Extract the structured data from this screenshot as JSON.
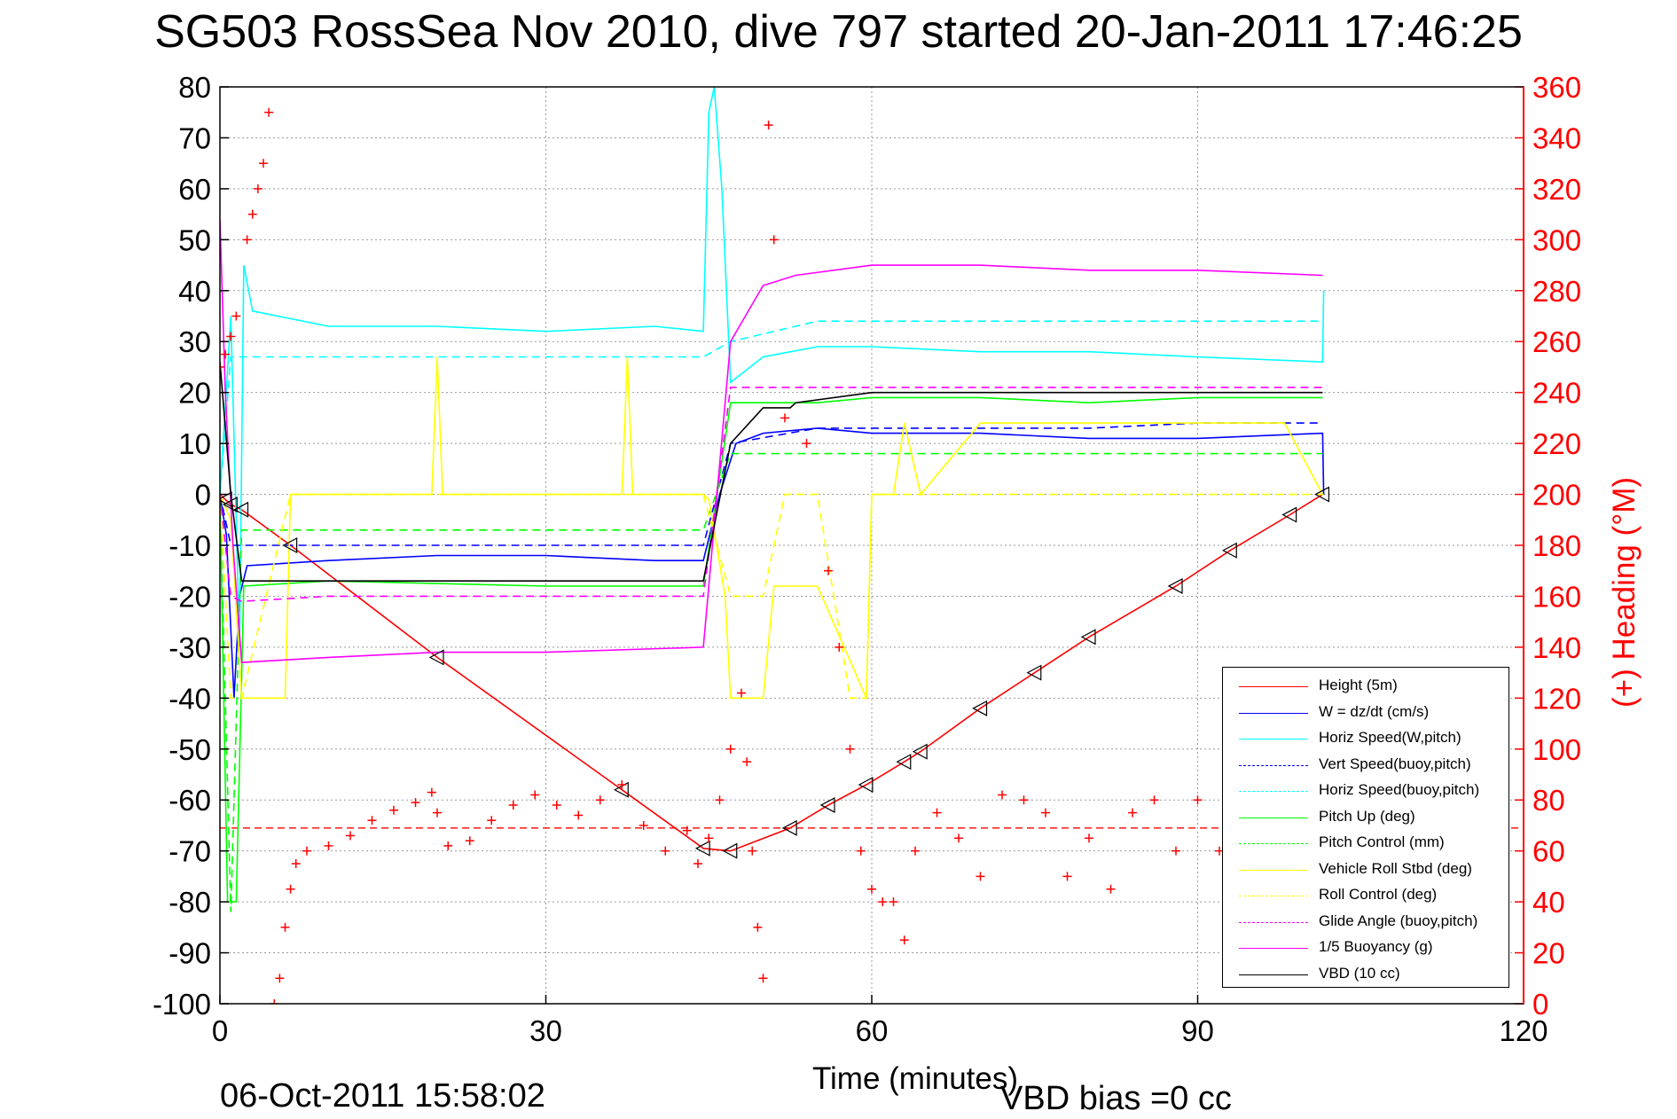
{
  "title": "SG503 RossSea Nov 2010, dive 797 started 20-Jan-2011 17:46:25",
  "footer": {
    "date": "06-Oct-2011 15:58:02",
    "vbd_bias": "VBD bias =0 cc"
  },
  "chart_data": {
    "type": "line",
    "title": "SG503 RossSea Nov 2010, dive 797 started 20-Jan-2011 17:46:25",
    "xlabel": "Time (minutes)",
    "ylabel_left": "",
    "ylabel_right": "(+) Heading (°M)",
    "xlim": [
      0,
      120
    ],
    "ylim_left": [
      -100,
      80
    ],
    "ylim_right": [
      0,
      360
    ],
    "x_ticks": [
      "0",
      "30",
      "60",
      "90",
      "120"
    ],
    "y_ticks_left": [
      "80",
      "70",
      "60",
      "50",
      "40",
      "30",
      "20",
      "10",
      "0",
      "-10",
      "-20",
      "-30",
      "-40",
      "-50",
      "-60",
      "-70",
      "-80",
      "-90",
      "-100"
    ],
    "y_ticks_right": [
      "360",
      "340",
      "320",
      "300",
      "280",
      "260",
      "240",
      "220",
      "200",
      "180",
      "160",
      "140",
      "120",
      "100",
      "80",
      "60",
      "40",
      "20",
      "0"
    ],
    "grid": true,
    "legend_position": "lower-right",
    "colors": {
      "height": "#ff0000",
      "w": "#0000ff",
      "horiz_speed": "#00ffff",
      "pitch": "#00ff00",
      "roll": "#ffff00",
      "glide": "#ff00ff",
      "vbd": "#000000"
    },
    "series": [
      {
        "name": "Height (5m)",
        "color": "#ff0000",
        "dash": false,
        "x": [
          0,
          0.5,
          1,
          2,
          6.5,
          20,
          37,
          44.5,
          47,
          52.5,
          56,
          59.5,
          63,
          64.5,
          70,
          75,
          80,
          88,
          93,
          98.5,
          101.5
        ],
        "y": [
          0,
          -1,
          -2,
          -3,
          -10,
          -32,
          -58,
          -69.5,
          -70,
          -65.5,
          -61,
          -57,
          -52.5,
          -50.5,
          -42,
          -35,
          -28,
          -18,
          -11,
          -4,
          0
        ]
      },
      {
        "name": "W = dz/dt (cm/s)",
        "color": "#0000ff",
        "dash": false,
        "x": [
          0,
          0.6,
          1.3,
          1.8,
          2.5,
          10,
          20,
          30,
          40,
          44.5,
          46,
          47.5,
          50,
          55,
          60,
          70,
          80,
          90,
          101.5,
          101.6
        ],
        "y": [
          0,
          -8,
          -40,
          -20,
          -14,
          -13,
          -12,
          -12,
          -13,
          -13,
          0,
          10,
          12,
          13,
          12,
          12,
          11,
          11,
          12,
          0
        ]
      },
      {
        "name": "Horiz Speed(W,pitch)",
        "color": "#00ffff",
        "dash": false,
        "x": [
          0,
          1,
          1.8,
          2.2,
          3,
          10,
          20,
          30,
          40,
          44.5,
          45,
          45.5,
          46.2,
          47,
          50,
          55,
          60,
          70,
          80,
          90,
          101.5,
          101.6
        ],
        "y": [
          0,
          35,
          -30,
          45,
          36,
          33,
          33,
          32,
          33,
          32,
          75,
          80,
          60,
          22,
          27,
          29,
          29,
          28,
          28,
          27,
          26,
          40
        ]
      },
      {
        "name": "Vert Speed(buoy,pitch)",
        "color": "#0000ff",
        "dash": true,
        "x": [
          0,
          1,
          2,
          10,
          30,
          44.5,
          47,
          55,
          60,
          70,
          80,
          90,
          101.5
        ],
        "y": [
          0,
          -10,
          -10,
          -10,
          -10,
          -10,
          10,
          13,
          13,
          13,
          13,
          14,
          14
        ]
      },
      {
        "name": "Horiz Speed(buoy,pitch)",
        "color": "#00ffff",
        "dash": true,
        "x": [
          0,
          1,
          2,
          10,
          30,
          44.5,
          47,
          55,
          60,
          70,
          80,
          90,
          101.5
        ],
        "y": [
          0,
          27,
          27,
          27,
          27,
          27,
          30,
          34,
          34,
          34,
          34,
          34,
          34
        ]
      },
      {
        "name": "Pitch Up (deg)",
        "color": "#00ff00",
        "dash": false,
        "x": [
          0,
          0.7,
          1.5,
          2.2,
          10,
          30,
          44.5,
          47,
          55,
          60,
          70,
          80,
          90,
          101.5
        ],
        "y": [
          0,
          -80,
          -80,
          -18,
          -17,
          -18,
          -18,
          18,
          18,
          19,
          19,
          18,
          19,
          19
        ]
      },
      {
        "name": "Pitch Control (mm)",
        "color": "#00ff00",
        "dash": true,
        "x": [
          0,
          1,
          2,
          10,
          30,
          44.5,
          47,
          55,
          60,
          70,
          80,
          90,
          101.5
        ],
        "y": [
          0,
          -82,
          -7,
          -7,
          -7,
          -7,
          8,
          8,
          8,
          8,
          8,
          8,
          8
        ]
      },
      {
        "name": "Vehicle Roll Stbd (deg)",
        "color": "#ffff00",
        "dash": false,
        "x": [
          0,
          1,
          2,
          6,
          6.5,
          19.5,
          20,
          20.5,
          37,
          37.5,
          38,
          44.5,
          45,
          46.5,
          47,
          50,
          51,
          55,
          59.5,
          60,
          62,
          63,
          64.5,
          70,
          75,
          80,
          88,
          93,
          98,
          101.5
        ],
        "y": [
          0,
          -5,
          -40,
          -40,
          0,
          0,
          27,
          0,
          0,
          27,
          0,
          0,
          -1,
          -20,
          -40,
          -40,
          -18,
          -18,
          -40,
          0,
          0,
          14,
          0,
          14,
          14,
          14,
          14,
          14,
          14,
          0
        ]
      },
      {
        "name": "Roll Control (deg)",
        "color": "#ffff00",
        "dash": true,
        "x": [
          0,
          1,
          2,
          6.5,
          44.5,
          47,
          50,
          52,
          55,
          58,
          59.5,
          60,
          101.5
        ],
        "y": [
          0,
          -40,
          -40,
          0,
          0,
          -20,
          -20,
          0,
          0,
          -40,
          -40,
          0,
          0
        ]
      },
      {
        "name": "Glide Angle (buoy,pitch)",
        "color": "#ff00ff",
        "dash": true,
        "x": [
          0,
          1,
          2,
          10,
          30,
          44.5,
          47,
          55,
          60,
          70,
          80,
          90,
          101.5
        ],
        "y": [
          0,
          -20,
          -21,
          -20,
          -20,
          -20,
          21,
          21,
          21,
          21,
          21,
          21,
          21
        ]
      },
      {
        "name": "1/5 Buoyancy (g)",
        "color": "#ff00ff",
        "dash": false,
        "x": [
          0,
          0.5,
          1.2,
          2,
          10,
          20,
          30,
          44.5,
          47,
          50,
          53,
          60,
          70,
          80,
          90,
          101.5
        ],
        "y": [
          54,
          20,
          -10,
          -33,
          -32,
          -31,
          -31,
          -30,
          30,
          41,
          43,
          45,
          45,
          44,
          44,
          43
        ]
      },
      {
        "name": "VBD (10 cc)",
        "color": "#000000",
        "dash": false,
        "x": [
          0,
          1,
          2,
          10,
          30,
          44.5,
          47,
          50,
          52.5,
          53,
          60,
          101.5
        ],
        "y": [
          26,
          0,
          -17,
          -17,
          -17,
          -17,
          10,
          17,
          17,
          18,
          20,
          20
        ]
      }
    ],
    "heading_series": {
      "name": "(+) Heading",
      "color": "#ff0000",
      "marker": "+",
      "axis": "right",
      "x": [
        0,
        0.5,
        1,
        1.5,
        2.5,
        3,
        3.5,
        4,
        4.5,
        5,
        5.5,
        6,
        6.5,
        7,
        8,
        10,
        12,
        14,
        16,
        18,
        19.5,
        20,
        21,
        23,
        25,
        27,
        29,
        31,
        33,
        35,
        37,
        39,
        41,
        43,
        44,
        45,
        46,
        47,
        48,
        48.5,
        49,
        49.5,
        50,
        50.5,
        51,
        52,
        54,
        56,
        57,
        58,
        59,
        60,
        61,
        62,
        63,
        64,
        66,
        68,
        70,
        72,
        74,
        76,
        78,
        80,
        82,
        84,
        86,
        88,
        90,
        92
      ],
      "y": [
        250,
        255,
        262,
        270,
        300,
        310,
        320,
        330,
        350,
        0,
        10,
        30,
        45,
        55,
        60,
        62,
        66,
        72,
        76,
        79,
        83,
        75,
        62,
        64,
        72,
        78,
        82,
        78,
        74,
        80,
        86,
        70,
        60,
        68,
        55,
        65,
        80,
        100,
        122,
        95,
        60,
        30,
        10,
        345,
        300,
        230,
        220,
        170,
        140,
        100,
        60,
        45,
        40,
        40,
        25,
        60,
        75,
        65,
        50,
        82,
        80,
        75,
        50,
        65,
        45,
        75,
        80,
        60,
        80,
        60
      ]
    },
    "hlines": [
      {
        "y": -65.5,
        "color": "#ff0000",
        "dash": true
      }
    ]
  },
  "legend": [
    {
      "label": "Height (5m)",
      "color": "#ff0000",
      "dash": false
    },
    {
      "label": "W = dz/dt (cm/s)",
      "color": "#0000ff",
      "dash": false
    },
    {
      "label": "Horiz Speed(W,pitch)",
      "color": "#00ffff",
      "dash": false
    },
    {
      "label": "Vert Speed(buoy,pitch)",
      "color": "#0000ff",
      "dash": true
    },
    {
      "label": "Horiz Speed(buoy,pitch)",
      "color": "#00ffff",
      "dash": true
    },
    {
      "label": "Pitch Up (deg)",
      "color": "#00ff00",
      "dash": false
    },
    {
      "label": "Pitch Control (mm)",
      "color": "#00ff00",
      "dash": true
    },
    {
      "label": "Vehicle Roll Stbd (deg)",
      "color": "#ffff00",
      "dash": false
    },
    {
      "label": "Roll Control (deg)",
      "color": "#ffff00",
      "dash": true
    },
    {
      "label": "Glide Angle (buoy,pitch)",
      "color": "#ff00ff",
      "dash": true
    },
    {
      "label": "1/5 Buoyancy (g)",
      "color": "#ff00ff",
      "dash": false
    },
    {
      "label": "VBD (10 cc)",
      "color": "#000000",
      "dash": false
    }
  ]
}
